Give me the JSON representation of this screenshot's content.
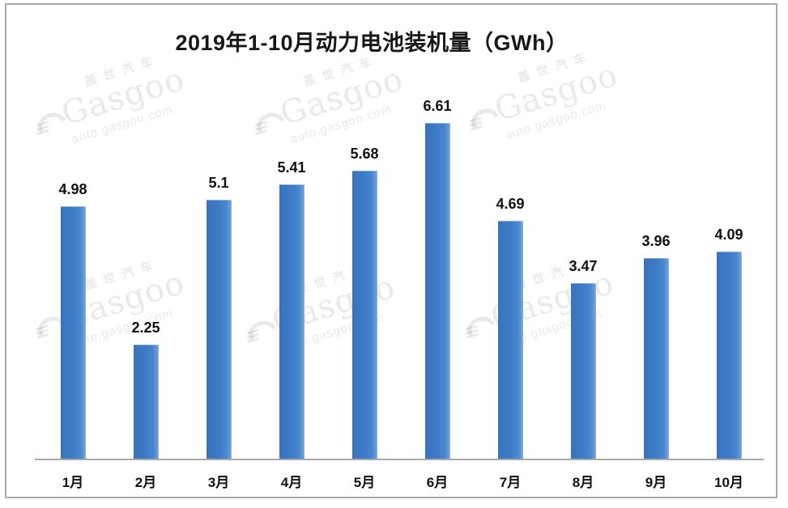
{
  "title": "2019年1-10月动力电池装机量（GWh）",
  "chart_data": {
    "type": "bar",
    "title": "2019年1-10月动力电池装机量（GWh）",
    "categories": [
      "1月",
      "2月",
      "3月",
      "4月",
      "5月",
      "6月",
      "7月",
      "8月",
      "9月",
      "10月"
    ],
    "values": [
      4.98,
      2.25,
      5.1,
      5.41,
      5.68,
      6.61,
      4.69,
      3.47,
      3.96,
      4.09
    ],
    "value_labels": [
      "4.98",
      "2.25",
      "5.1",
      "5.41",
      "5.68",
      "6.61",
      "4.69",
      "3.47",
      "3.96",
      "4.09"
    ],
    "ylabel": "",
    "xlabel": "",
    "ylim": [
      0,
      7
    ],
    "grid": false,
    "legend": false,
    "data_labels_position": "above-bars",
    "bar_color": "#3d7cc9",
    "axis_color": "#a8a8a8",
    "frame_color": "#a9a9a9",
    "label_color": "#111111"
  },
  "watermark": {
    "company_cn": "盖世汽车",
    "brand": "Gasgoo",
    "url": "auto.gasgoo.com"
  }
}
